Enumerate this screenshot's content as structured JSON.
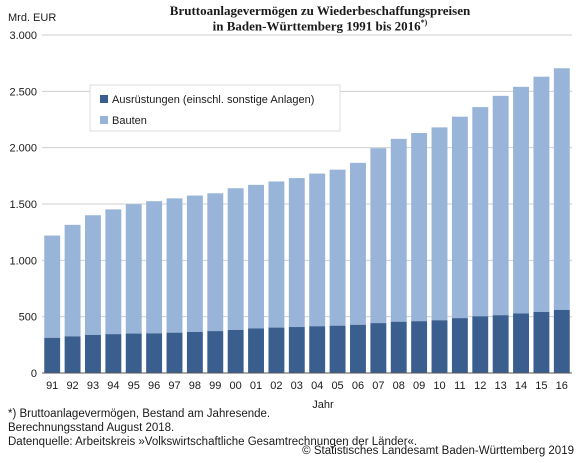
{
  "chart_data": {
    "type": "bar",
    "stacked": true,
    "title_line1": "Bruttoanlagevermögen zu Wiederbeschaffungspreisen",
    "title_line2": "in Baden-Württemberg 1991 bis 2016",
    "title_sup": "*)",
    "ylabel": "Mrd. EUR",
    "xlabel": "Jahr",
    "ylim": [
      0,
      3000
    ],
    "yticks": [
      0,
      500,
      1000,
      1500,
      2000,
      2500,
      3000
    ],
    "ytick_labels": [
      "0",
      "500",
      "1.000",
      "1.500",
      "2.000",
      "2.500",
      "3.000"
    ],
    "grid": true,
    "legend_position": "top-left",
    "categories": [
      "91",
      "92",
      "93",
      "94",
      "95",
      "96",
      "97",
      "98",
      "99",
      "00",
      "01",
      "02",
      "03",
      "04",
      "05",
      "06",
      "07",
      "08",
      "09",
      "10",
      "11",
      "12",
      "13",
      "14",
      "15",
      "16"
    ],
    "series": [
      {
        "name": "Ausrüstungen (einschl. sonstige Anlagen)",
        "color": "#3a5f8f",
        "values": [
          312,
          325,
          338,
          345,
          350,
          352,
          358,
          364,
          372,
          382,
          395,
          403,
          408,
          415,
          420,
          428,
          443,
          455,
          460,
          468,
          487,
          503,
          513,
          528,
          542,
          560
        ]
      },
      {
        "name": "Bauten",
        "color": "#98b4d8",
        "values": [
          908,
          990,
          1062,
          1107,
          1148,
          1173,
          1192,
          1211,
          1223,
          1258,
          1275,
          1297,
          1322,
          1355,
          1385,
          1437,
          1552,
          1623,
          1670,
          1712,
          1788,
          1857,
          1947,
          2012,
          2088,
          2145
        ]
      }
    ]
  },
  "footnotes": {
    "line1": "*) Bruttoanlagevermögen, Bestand am Jahresende.",
    "line2": "Berechnungsstand August 2018.",
    "line3": "Datenquelle: Arbeitskreis »Volkswirtschaftliche Gesamtrechnungen der Länder«.",
    "copyright": "© Statistisches Landesamt Baden-Württemberg 2019"
  }
}
